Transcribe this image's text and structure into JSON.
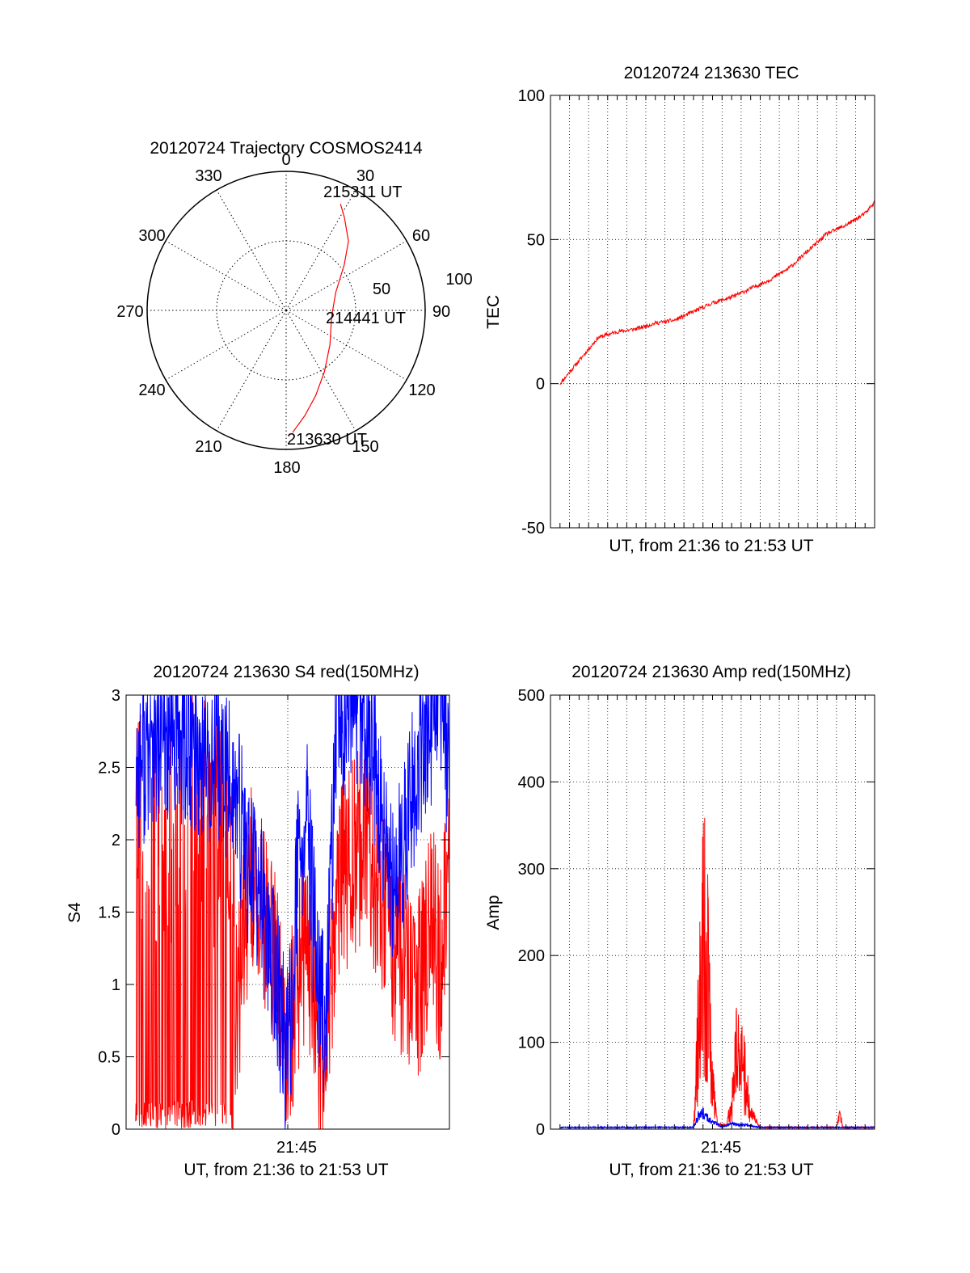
{
  "colors": {
    "red": "#ff0000",
    "blue": "#0000ff",
    "axis": "#000000",
    "grid": "#000000"
  },
  "charts": {
    "polar": {
      "title": "20120724 Trajectory COSMOS2414",
      "azimuth_labels": [
        "0",
        "30",
        "60",
        "90",
        "120",
        "150",
        "180",
        "210",
        "240",
        "270",
        "300",
        "330"
      ],
      "radius_labels": [
        "50",
        "100"
      ],
      "point_labels": {
        "end": "215311 UT",
        "mid": "214441 UT",
        "start": "213630 UT"
      }
    },
    "tec": {
      "title": "20120724 213630 TEC",
      "ylabel": "TEC",
      "xlabel": "UT, from 21:36 to 21:53 UT",
      "yticks": [
        "100",
        "50",
        "0",
        "-50"
      ]
    },
    "s4": {
      "title": "20120724 213630 S4 red(150MHz)",
      "ylabel": "S4",
      "xlabel": "UT, from 21:36 to 21:53 UT",
      "xtick": "21:45",
      "yticks": [
        "3",
        "2.5",
        "2",
        "1.5",
        "1",
        "0.5",
        "0"
      ]
    },
    "amp": {
      "title": "20120724 213630 Amp red(150MHz)",
      "ylabel": "Amp",
      "xlabel": "UT, from 21:36 to 21:53 UT",
      "xtick": "21:45",
      "yticks": [
        "500",
        "400",
        "300",
        "200",
        "100",
        "0"
      ]
    }
  },
  "chart_data": [
    {
      "type": "scatter",
      "subtype": "polar-trajectory",
      "title": "20120724 Trajectory COSMOS2414",
      "radial_range": [
        0,
        100
      ],
      "angular_ticks_deg": [
        0,
        30,
        60,
        90,
        120,
        150,
        180,
        210,
        240,
        270,
        300,
        330
      ],
      "series": [
        {
          "color": "red",
          "azimuth_deg": [
            177,
            170,
            161,
            148,
            128,
            98,
            70,
            52,
            42,
            32,
            27
          ],
          "radius": [
            88,
            77,
            65,
            52,
            40,
            33,
            38,
            53,
            67,
            79,
            86
          ]
        }
      ],
      "annotations": [
        "213630 UT",
        "214441 UT",
        "215311 UT"
      ]
    },
    {
      "type": "line",
      "title": "20120724 213630 TEC",
      "xlabel": "UT, from 21:36 to 21:53 UT",
      "ylabel": "TEC",
      "xlim": [
        "21:36",
        "21:53"
      ],
      "ylim": [
        -50,
        100
      ],
      "grid": true,
      "series": [
        {
          "color": "red",
          "x": [
            "21:36:30",
            "21:37:30",
            "21:38:30",
            "21:39:30",
            "21:40:30",
            "21:41:30",
            "21:42:30",
            "21:43:30",
            "21:44:30",
            "21:45:30",
            "21:46:30",
            "21:47:30",
            "21:48:30",
            "21:49:30",
            "21:50:30",
            "21:51:30",
            "21:52:30",
            "21:53:00"
          ],
          "y": [
            0,
            8,
            16,
            18,
            19,
            21,
            22,
            25,
            28,
            30,
            33,
            36,
            40,
            46,
            52,
            55,
            59,
            63
          ]
        }
      ]
    },
    {
      "type": "line",
      "title": "20120724 213630 S4 red(150MHz)",
      "xlabel": "UT, from 21:36 to 21:53 UT",
      "ylabel": "S4",
      "xlim": [
        "21:36",
        "21:53"
      ],
      "ylim": [
        0,
        3
      ],
      "xticks": [
        "21:45"
      ],
      "grid": true,
      "series": [
        {
          "color": "red",
          "x": [
            "21:36:30",
            "21:37:30",
            "21:38:30",
            "21:39:30",
            "21:40:30",
            "21:41:30",
            "21:42:00",
            "21:42:30",
            "21:43:00",
            "21:43:30",
            "21:44:00",
            "21:44:30",
            "21:45:00",
            "21:45:30",
            "21:46:00",
            "21:46:30",
            "21:47:00",
            "21:47:30",
            "21:48:00",
            "21:48:30",
            "21:49:00",
            "21:49:30",
            "21:50:00",
            "21:50:30",
            "21:51:00",
            "21:51:30",
            "21:52:00",
            "21:52:30",
            "21:53:00"
          ],
          "y": [
            0,
            0,
            0,
            0,
            0,
            0,
            0.8,
            1.4,
            1.4,
            1.0,
            0.7,
            0.3,
            0.8,
            1.0,
            0.5,
            0.15,
            1.3,
            1.5,
            1.6,
            1.7,
            1.5,
            1.3,
            1.0,
            0.9,
            0.6,
            0.8,
            1.2,
            0.9,
            1.8
          ]
        },
        {
          "color": "blue",
          "x": [
            "21:36:30",
            "21:37:30",
            "21:38:30",
            "21:39:30",
            "21:40:30",
            "21:41:30",
            "21:42:00",
            "21:42:30",
            "21:43:00",
            "21:43:30",
            "21:44:00",
            "21:44:30",
            "21:45:00",
            "21:45:30",
            "21:46:00",
            "21:46:30",
            "21:47:00",
            "21:47:30",
            "21:48:00",
            "21:48:30",
            "21:49:00",
            "21:49:30",
            "21:50:00",
            "21:50:30",
            "21:51:00",
            "21:51:30",
            "21:52:00",
            "21:52:30",
            "21:53:00"
          ],
          "y": [
            2.4,
            2.5,
            2.6,
            2.5,
            2.4,
            2.3,
            2.0,
            1.7,
            1.5,
            1.2,
            0.8,
            0.3,
            1.6,
            2.0,
            1.0,
            0.5,
            2.6,
            2.8,
            2.9,
            2.7,
            2.4,
            1.9,
            1.5,
            1.8,
            2.2,
            2.5,
            2.7,
            2.8,
            2.4
          ]
        }
      ]
    },
    {
      "type": "line",
      "title": "20120724 213630 Amp red(150MHz)",
      "xlabel": "UT, from 21:36 to 21:53 UT",
      "ylabel": "Amp",
      "xlim": [
        "21:36",
        "21:53"
      ],
      "ylim": [
        0,
        500
      ],
      "xticks": [
        "21:45"
      ],
      "grid": true,
      "series": [
        {
          "color": "red",
          "x": [
            "21:36:30",
            "21:40:00",
            "21:43:30",
            "21:43:45",
            "21:44:00",
            "21:44:15",
            "21:44:30",
            "21:44:45",
            "21:45:00",
            "21:45:15",
            "21:45:30",
            "21:45:45",
            "21:46:00",
            "21:46:15",
            "21:46:30",
            "21:47:00",
            "21:50:00",
            "21:51:00",
            "21:51:10",
            "21:51:20",
            "21:53:00"
          ],
          "y": [
            0,
            0,
            0,
            190,
            410,
            280,
            80,
            5,
            5,
            5,
            40,
            160,
            130,
            90,
            20,
            2,
            2,
            2,
            18,
            2,
            2
          ]
        },
        {
          "color": "blue",
          "x": [
            "21:36:30",
            "21:40:00",
            "21:43:30",
            "21:43:45",
            "21:44:00",
            "21:44:30",
            "21:45:00",
            "21:45:30",
            "21:46:00",
            "21:46:30",
            "21:47:00",
            "21:53:00"
          ],
          "y": [
            2,
            2,
            2,
            15,
            18,
            8,
            3,
            6,
            5,
            4,
            2,
            2
          ]
        }
      ]
    }
  ]
}
